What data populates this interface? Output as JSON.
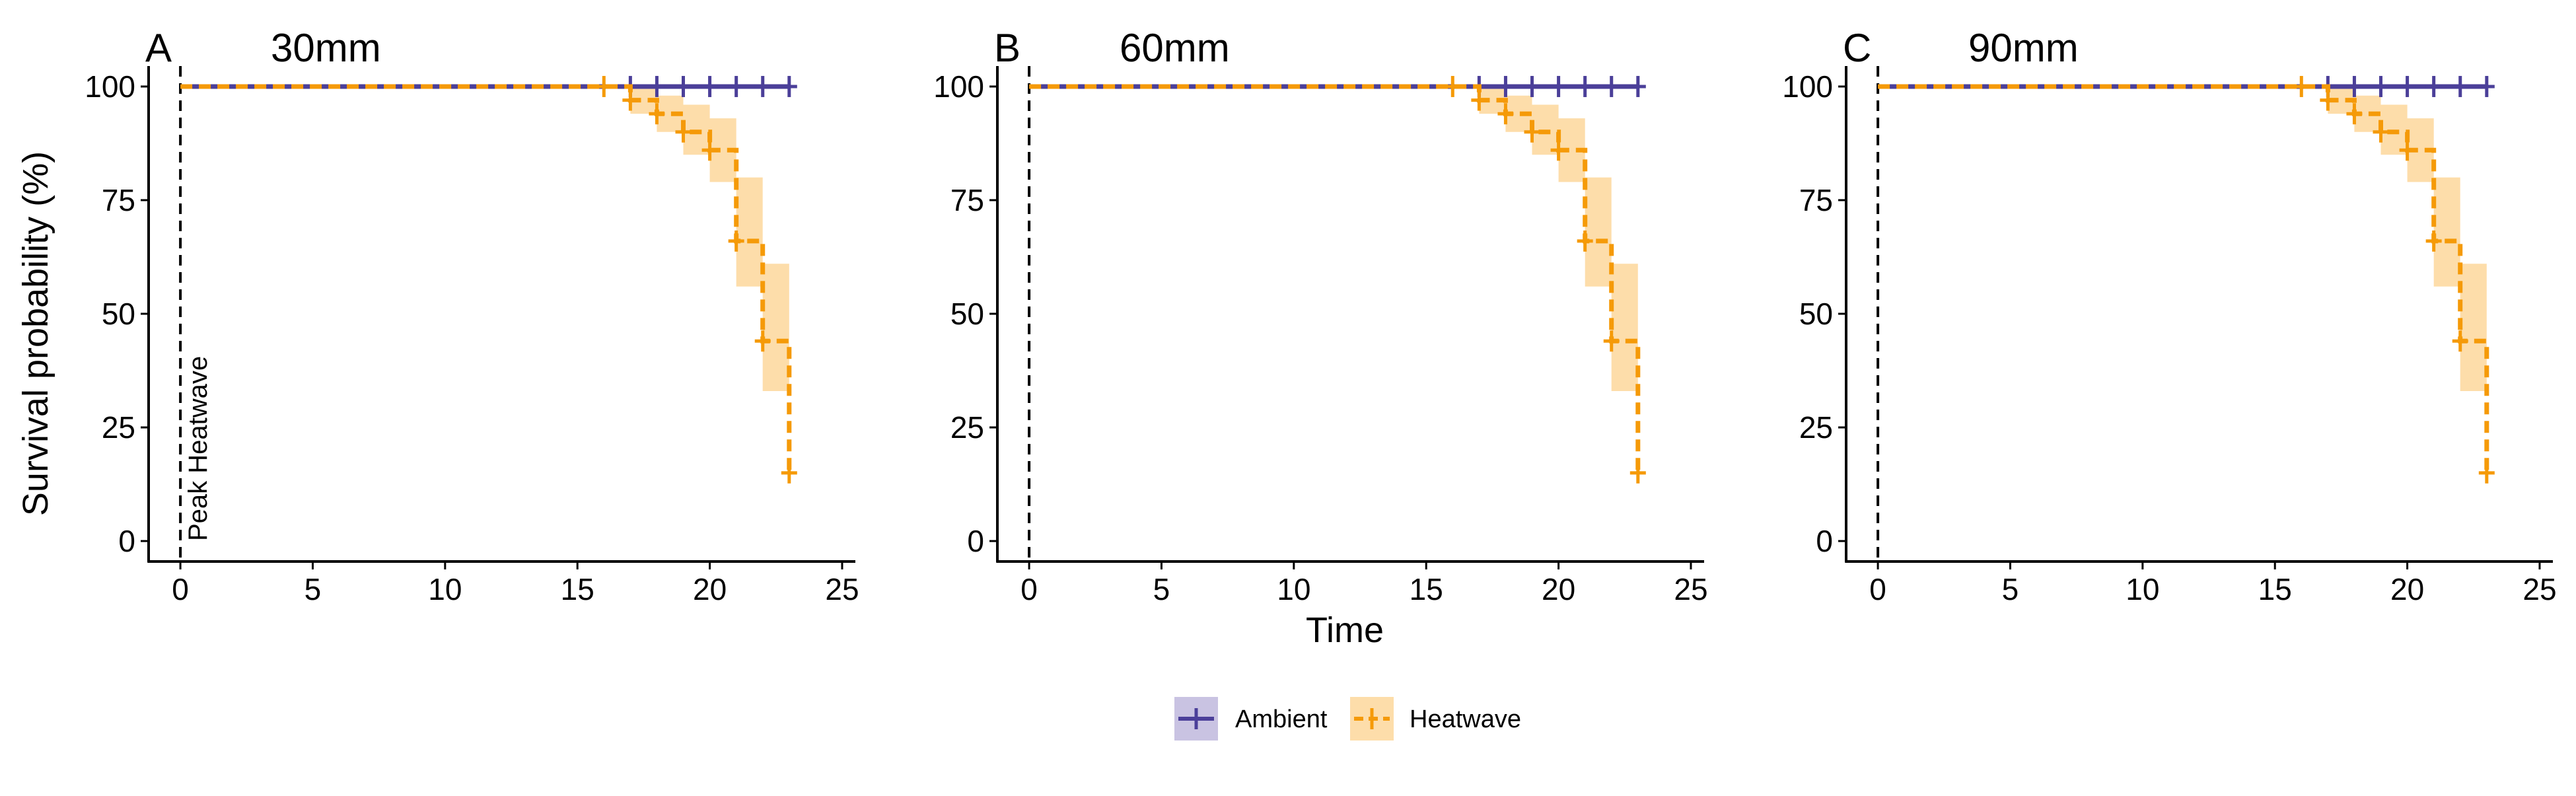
{
  "colors": {
    "ambient": "#4B3F99",
    "ambient_fill": "#C9C3E2",
    "heatwave": "#F59A08",
    "heatwave_fill": "#FDDDAA",
    "axis": "#000000"
  },
  "axes": {
    "ylabel": "Survival probability (%)",
    "xlabel": "Time",
    "xlim": [
      -1.2,
      25.5
    ],
    "ylim": [
      -4.5,
      104.5
    ],
    "xticks": [
      0,
      5,
      10,
      15,
      20,
      25
    ],
    "yticks": [
      0,
      25,
      50,
      75,
      100
    ],
    "grid": false
  },
  "annotation": {
    "text": "Peak Heatwave",
    "x": 0,
    "line_style": "dashed"
  },
  "legend": {
    "position": "bottom",
    "items": [
      {
        "label": "Ambient",
        "color_key": "ambient"
      },
      {
        "label": "Heatwave",
        "color_key": "heatwave"
      }
    ]
  },
  "chart_data": [
    {
      "type": "line",
      "subtype": "kaplan-meier-step",
      "letter": "A",
      "title": "30mm",
      "series": [
        {
          "name": "Ambient",
          "times": [
            0,
            23
          ],
          "surv": [
            100,
            100
          ],
          "censor_times": [
            17,
            18,
            19,
            20,
            21,
            22,
            23
          ],
          "ci_lower": [
            100,
            100
          ],
          "ci_upper": [
            100,
            100
          ]
        },
        {
          "name": "Heatwave",
          "times": [
            0,
            17,
            18,
            19,
            20,
            21,
            22,
            23
          ],
          "surv": [
            100,
            97,
            94,
            90,
            86,
            66,
            44,
            15
          ],
          "censor_times": [
            16,
            17,
            18,
            19,
            20,
            21,
            22,
            23
          ],
          "ci_lower": [
            100,
            94,
            90,
            85,
            79,
            56,
            33,
            4
          ],
          "ci_upper": [
            100,
            100,
            98,
            96,
            93,
            80,
            61,
            44
          ]
        }
      ]
    },
    {
      "type": "line",
      "subtype": "kaplan-meier-step",
      "letter": "B",
      "title": "60mm",
      "series": [
        {
          "name": "Ambient",
          "times": [
            0,
            23
          ],
          "surv": [
            100,
            100
          ],
          "censor_times": [
            17,
            18,
            19,
            20,
            21,
            22,
            23
          ],
          "ci_lower": [
            100,
            100
          ],
          "ci_upper": [
            100,
            100
          ]
        },
        {
          "name": "Heatwave",
          "times": [
            0,
            17,
            18,
            19,
            20,
            21,
            22,
            23
          ],
          "surv": [
            100,
            97,
            94,
            90,
            86,
            66,
            44,
            15
          ],
          "censor_times": [
            16,
            17,
            18,
            19,
            20,
            21,
            22,
            23
          ],
          "ci_lower": [
            100,
            94,
            90,
            85,
            79,
            56,
            33,
            4
          ],
          "ci_upper": [
            100,
            100,
            98,
            96,
            93,
            80,
            61,
            44
          ]
        }
      ]
    },
    {
      "type": "line",
      "subtype": "kaplan-meier-step",
      "letter": "C",
      "title": "90mm",
      "series": [
        {
          "name": "Ambient",
          "times": [
            0,
            23
          ],
          "surv": [
            100,
            100
          ],
          "censor_times": [
            17,
            18,
            19,
            20,
            21,
            22,
            23
          ],
          "ci_lower": [
            100,
            100
          ],
          "ci_upper": [
            100,
            100
          ]
        },
        {
          "name": "Heatwave",
          "times": [
            0,
            17,
            18,
            19,
            20,
            21,
            22,
            23
          ],
          "surv": [
            100,
            97,
            94,
            90,
            86,
            66,
            44,
            15
          ],
          "censor_times": [
            16,
            17,
            18,
            19,
            20,
            21,
            22,
            23
          ],
          "ci_lower": [
            100,
            94,
            90,
            85,
            79,
            56,
            33,
            4
          ],
          "ci_upper": [
            100,
            100,
            98,
            96,
            93,
            80,
            61,
            44
          ]
        }
      ]
    }
  ]
}
